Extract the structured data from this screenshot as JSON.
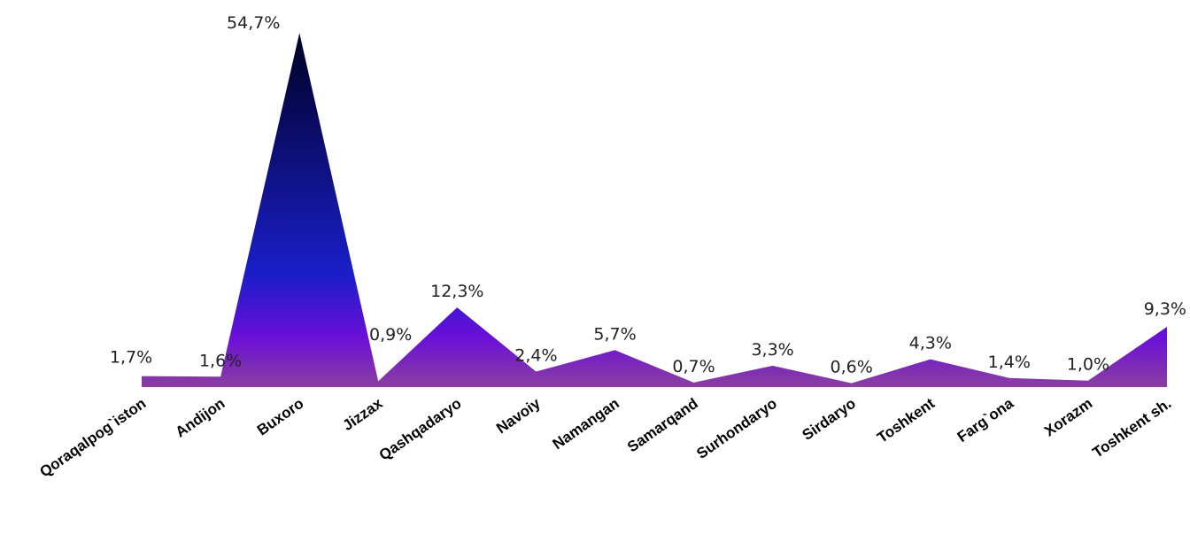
{
  "chart_data": {
    "type": "area",
    "categories": [
      "Qoraqalpog`iston",
      "Andijon",
      "Buxoro",
      "Jizzax",
      "Qashqadaryo",
      "Navoiy",
      "Namangan",
      "Samarqand",
      "Surhondaryo",
      "Sirdaryo",
      "Toshkent",
      "Farg`ona",
      "Xorazm",
      "Toshkent sh."
    ],
    "values": [
      1.7,
      1.6,
      54.7,
      0.9,
      12.3,
      2.4,
      5.7,
      0.7,
      3.3,
      0.6,
      4.3,
      1.4,
      1.0,
      9.3
    ],
    "data_labels": [
      "1,7%",
      "1,6%",
      "54,7%",
      "0,9%",
      "12,3%",
      "2,4%",
      "5,7%",
      "0,7%",
      "3,3%",
      "0,6%",
      "4,3%",
      "1,4%",
      "1,0%",
      "9,3%"
    ],
    "ylim": [
      0,
      55
    ],
    "grid": false,
    "legend": "none",
    "colors": {
      "top": "#000022",
      "mid": "#1a1ec8",
      "low": "#6a0fd8",
      "base": "#8a3fa0"
    }
  }
}
